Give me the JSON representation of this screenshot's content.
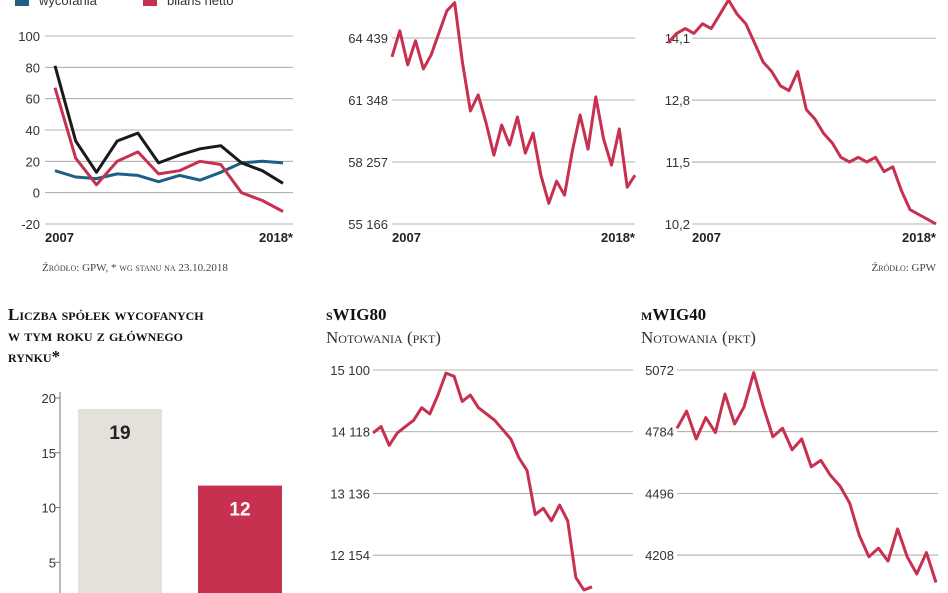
{
  "chart_data": [
    {
      "type": "line",
      "categories": [
        "2007",
        null,
        null,
        null,
        null,
        null,
        null,
        null,
        null,
        null,
        null,
        "2018*"
      ],
      "series": [
        {
          "name": "wycofania",
          "color": "#1d5f86",
          "values": [
            14,
            10,
            9,
            12,
            11,
            7,
            11,
            8,
            13,
            19,
            20,
            19
          ]
        },
        {
          "name": "bilans netto",
          "color": "#c8304f",
          "values": [
            67,
            22,
            5,
            20,
            26,
            12,
            14,
            20,
            18,
            0,
            -5,
            -12
          ]
        },
        {
          "color": "#1a1a1a",
          "values": [
            81,
            33,
            13,
            33,
            38,
            19,
            24,
            28,
            30,
            19,
            14,
            6
          ]
        }
      ],
      "ylim": [
        -20,
        100
      ],
      "yticks": [
        100,
        80,
        60,
        40,
        20,
        0,
        -20
      ],
      "grid": true,
      "source": "Źródło: GPW, * wg stanu na 23.10.2018"
    },
    {
      "type": "line",
      "categories": [
        "2007",
        null,
        null,
        null,
        null,
        null,
        null,
        null,
        null,
        null,
        null,
        null,
        null,
        null,
        null,
        null,
        null,
        null,
        null,
        null,
        null,
        null,
        null,
        null,
        null,
        null,
        null,
        null,
        null,
        null,
        null,
        "2018*"
      ],
      "values": [
        63500,
        64800,
        63100,
        64300,
        62900,
        63600,
        64700,
        65800,
        66200,
        63200,
        60800,
        61600,
        60200,
        58600,
        60100,
        59100,
        60500,
        58700,
        59700,
        57600,
        56200,
        57300,
        56600,
        58800,
        60600,
        58900,
        61500,
        59400,
        58100,
        59900,
        57000,
        57600
      ],
      "color": "#c8304f",
      "ylim": [
        55166,
        66333
      ],
      "yticks": [
        {
          "value": 64439,
          "label": "64 439"
        },
        {
          "value": 61348,
          "label": "61 348"
        },
        {
          "value": 58257,
          "label": "58 257"
        },
        {
          "value": 55166,
          "label": "55 166"
        }
      ],
      "grid": true
    },
    {
      "type": "line",
      "categories": [
        "2007",
        null,
        null,
        null,
        null,
        null,
        null,
        null,
        null,
        null,
        null,
        null,
        null,
        null,
        null,
        null,
        null,
        null,
        null,
        null,
        null,
        null,
        null,
        null,
        null,
        null,
        null,
        null,
        null,
        null,
        null,
        "2018*"
      ],
      "values": [
        14.0,
        14.2,
        14.3,
        14.2,
        14.4,
        14.3,
        14.6,
        14.9,
        14.6,
        14.4,
        14.0,
        13.6,
        13.4,
        13.1,
        13.0,
        13.4,
        12.6,
        12.4,
        12.1,
        11.9,
        11.6,
        11.5,
        11.6,
        11.5,
        11.6,
        11.3,
        11.4,
        10.9,
        10.5,
        10.4,
        10.3,
        10.2
      ],
      "color": "#c8304f",
      "ylim": [
        10.2,
        14.9
      ],
      "yticks": [
        {
          "value": 14.1,
          "label": "14,1"
        },
        {
          "value": 12.8,
          "label": "12,8"
        },
        {
          "value": 11.5,
          "label": "11,5"
        },
        {
          "value": 10.2,
          "label": "10,2"
        }
      ],
      "grid": true,
      "source": "Źródło: GPW"
    },
    {
      "type": "bar",
      "title": [
        "Liczba spółek wycofanych",
        "w tym roku z głównego",
        "rynku*"
      ],
      "categories": [
        null,
        null
      ],
      "values": [
        19,
        12
      ],
      "colors": [
        "#e4e1db",
        "#c8304f"
      ],
      "ylim": [
        0,
        20
      ],
      "yticks": [
        20,
        15,
        10,
        5
      ],
      "grid": false
    },
    {
      "type": "line",
      "title": "sWIG80",
      "subtitle": "Notowania (pkt)",
      "values": [
        14100,
        14200,
        13900,
        14100,
        14200,
        14300,
        14500,
        14400,
        14700,
        15050,
        15000,
        14600,
        14700,
        14500,
        14400,
        14300,
        14150,
        14000,
        13700,
        13500,
        12800,
        12900,
        12700,
        12950,
        12700,
        11800,
        11600,
        11650
      ],
      "color": "#c8304f",
      "ylim": [
        11552,
        15100
      ],
      "yticks": [
        {
          "value": 15100,
          "label": "15 100"
        },
        {
          "value": 14118,
          "label": "14 118"
        },
        {
          "value": 13136,
          "label": "13 136"
        },
        {
          "value": 12154,
          "label": "12 154"
        }
      ],
      "grid": true
    },
    {
      "type": "line",
      "title": "mWIG40",
      "subtitle": "Notowania (pkt)",
      "values": [
        4800,
        4880,
        4750,
        4850,
        4780,
        4960,
        4820,
        4900,
        5060,
        4900,
        4760,
        4800,
        4700,
        4750,
        4620,
        4650,
        4580,
        4530,
        4450,
        4300,
        4200,
        4240,
        4180,
        4330,
        4200,
        4120,
        4220,
        4080
      ],
      "color": "#c8304f",
      "ylim": [
        4031,
        5072
      ],
      "yticks": [
        5072,
        4784,
        4496,
        4208
      ],
      "grid": true
    }
  ]
}
